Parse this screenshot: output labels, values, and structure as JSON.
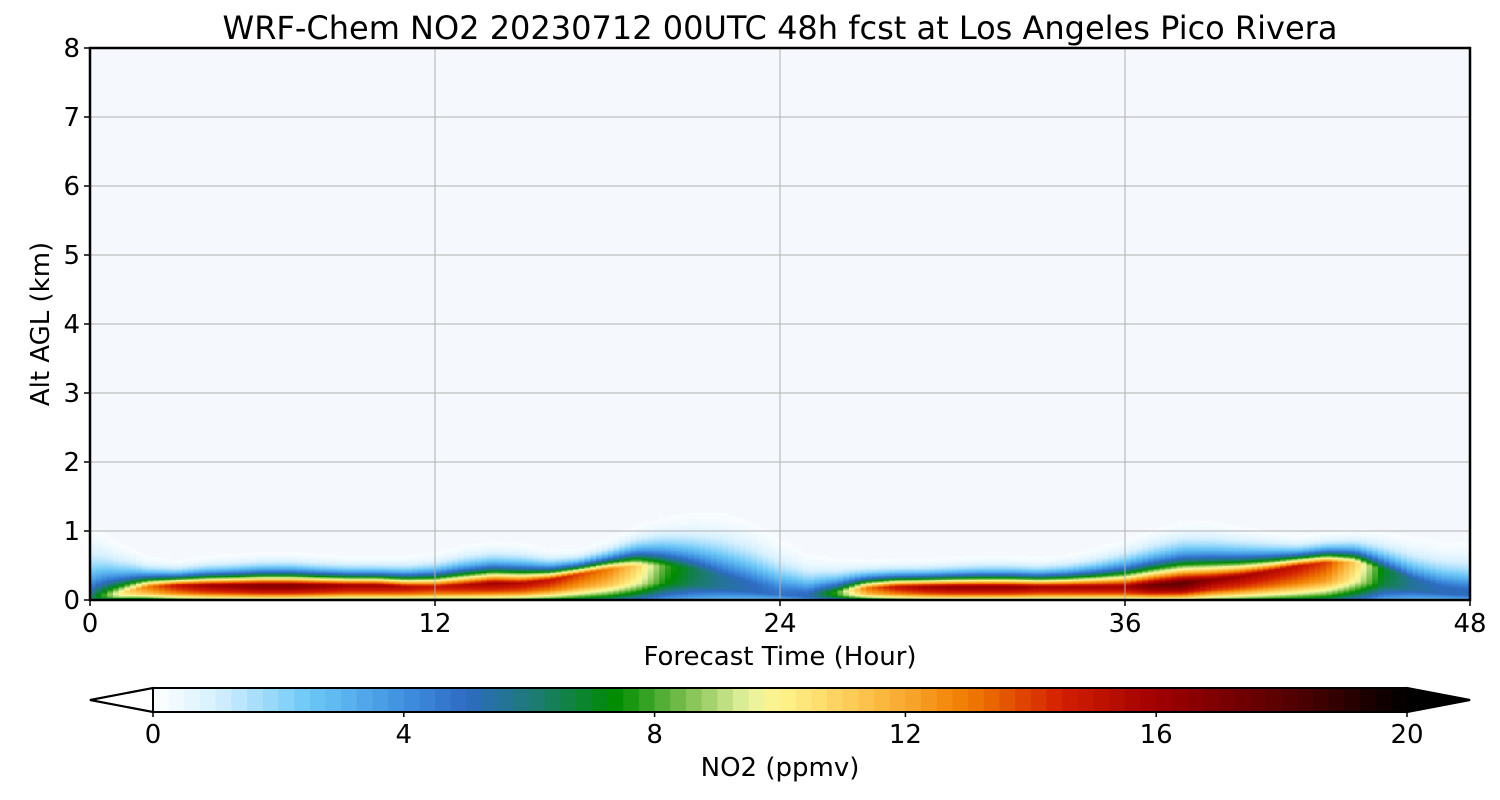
{
  "chart_data": {
    "type": "heatmap",
    "title": "WRF-Chem NO2  20230712 00UTC 48h fcst at Los Angeles Pico Rivera",
    "xlabel": "Forecast Time (Hour)",
    "ylabel": "Alt AGL (km)",
    "xlim": [
      0,
      48
    ],
    "ylim": [
      0,
      8
    ],
    "x_ticks": [
      "0",
      "12",
      "24",
      "36",
      "48"
    ],
    "y_ticks": [
      "0",
      "1",
      "2",
      "3",
      "4",
      "5",
      "6",
      "7",
      "8"
    ],
    "grid": true,
    "x": [
      0,
      1,
      2,
      3,
      4,
      5,
      6,
      7,
      8,
      9,
      10,
      11,
      12,
      13,
      14,
      15,
      16,
      17,
      18,
      19,
      20,
      21,
      22,
      23,
      24,
      25,
      26,
      27,
      28,
      29,
      30,
      31,
      32,
      33,
      34,
      35,
      36,
      37,
      38,
      39,
      40,
      41,
      42,
      43,
      44,
      45,
      46,
      47,
      48
    ],
    "surface_no2": [
      6,
      10,
      13,
      15,
      16,
      16.5,
      17,
      17,
      16.5,
      16,
      16,
      15.5,
      15,
      15.5,
      16,
      15.5,
      15,
      14,
      13,
      11,
      8,
      6.5,
      5.5,
      5,
      4.5,
      5,
      8,
      13,
      15,
      16,
      16.5,
      16.5,
      16.5,
      16,
      16,
      16,
      16,
      17.5,
      18,
      16.5,
      16,
      15.5,
      15,
      14,
      11,
      7,
      5.5,
      5,
      5
    ],
    "plume_top_km": [
      1.1,
      0.8,
      0.6,
      0.55,
      0.6,
      0.62,
      0.65,
      0.65,
      0.62,
      0.6,
      0.6,
      0.6,
      0.65,
      0.75,
      0.8,
      0.78,
      0.7,
      0.72,
      0.85,
      1.05,
      1.2,
      1.28,
      1.32,
      1.2,
      0.95,
      0.7,
      0.6,
      0.56,
      0.56,
      0.56,
      0.58,
      0.6,
      0.6,
      0.58,
      0.62,
      0.7,
      0.82,
      0.95,
      1.05,
      1.05,
      1.0,
      0.95,
      0.9,
      0.95,
      1.0,
      1.0,
      0.95,
      0.9,
      0.88
    ],
    "peak_height_km": [
      0.05,
      0.1,
      0.2,
      0.22,
      0.22,
      0.22,
      0.22,
      0.22,
      0.22,
      0.22,
      0.22,
      0.2,
      0.2,
      0.22,
      0.25,
      0.25,
      0.3,
      0.38,
      0.45,
      0.5,
      0.5,
      0.45,
      0.35,
      0.25,
      0.15,
      0.1,
      0.12,
      0.18,
      0.2,
      0.2,
      0.2,
      0.2,
      0.2,
      0.2,
      0.2,
      0.2,
      0.2,
      0.22,
      0.25,
      0.3,
      0.35,
      0.42,
      0.5,
      0.55,
      0.55,
      0.45,
      0.3,
      0.2,
      0.15
    ],
    "colorbar": {
      "label": "NO2  (ppmv)",
      "min": 0,
      "max": 20,
      "ticks": [
        "0",
        "4",
        "8",
        "12",
        "16",
        "20"
      ],
      "extend": "both",
      "stops": [
        {
          "v": 0,
          "color": "#ffffff"
        },
        {
          "v": 1,
          "color": "#d6f0ff"
        },
        {
          "v": 2.5,
          "color": "#6cc8f7"
        },
        {
          "v": 4,
          "color": "#3f90e0"
        },
        {
          "v": 5,
          "color": "#2e6bc2"
        },
        {
          "v": 6,
          "color": "#1e7a7a"
        },
        {
          "v": 7.4,
          "color": "#008c00"
        },
        {
          "v": 8.5,
          "color": "#7dc050"
        },
        {
          "v": 9.5,
          "color": "#e6f2a0"
        },
        {
          "v": 10,
          "color": "#fff58c"
        },
        {
          "v": 11.5,
          "color": "#fcbd45"
        },
        {
          "v": 13,
          "color": "#f07c00"
        },
        {
          "v": 14.5,
          "color": "#d21e00"
        },
        {
          "v": 16,
          "color": "#a00000"
        },
        {
          "v": 18,
          "color": "#5a0000"
        },
        {
          "v": 20,
          "color": "#000000"
        }
      ]
    },
    "background_color": "#f5f9fd"
  }
}
